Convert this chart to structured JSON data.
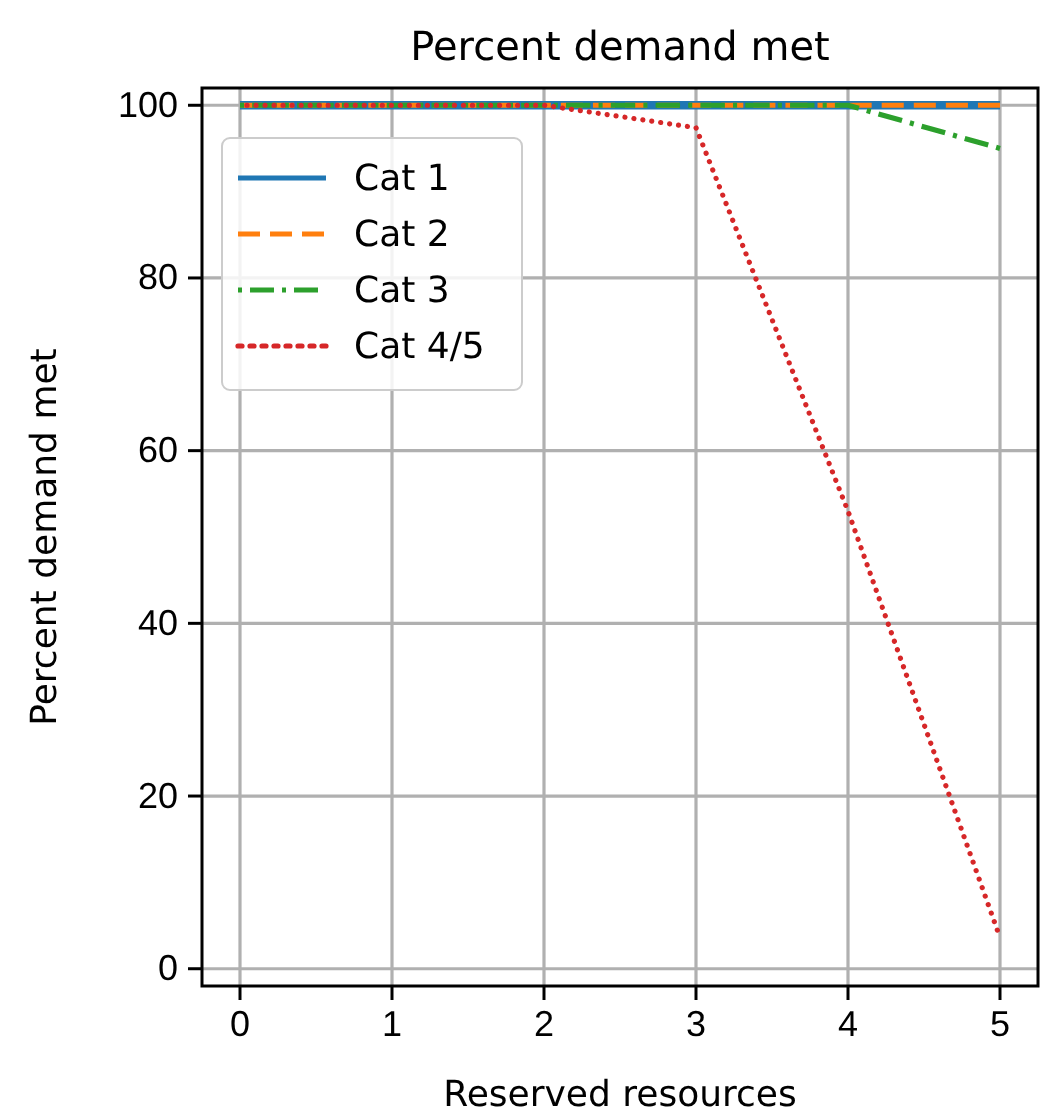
{
  "chart_data": {
    "type": "line",
    "title": "Percent demand met",
    "xlabel": "Reserved resources",
    "ylabel": "Percent demand met",
    "x": [
      0,
      1,
      2,
      3,
      4,
      5
    ],
    "series": [
      {
        "name": "Cat 1",
        "color": "#1f77b4",
        "line_style": "solid",
        "values": [
          100,
          100,
          100,
          100,
          100,
          100
        ]
      },
      {
        "name": "Cat 2",
        "color": "#ff7f0e",
        "line_style": "dashed",
        "values": [
          100,
          100,
          100,
          100,
          100,
          100
        ]
      },
      {
        "name": "Cat 3",
        "color": "#2ca02c",
        "line_style": "dashdot",
        "values": [
          100,
          100,
          100,
          100,
          100,
          95
        ]
      },
      {
        "name": "Cat 4/5",
        "color": "#d62728",
        "line_style": "dotted",
        "values": [
          100,
          100,
          100,
          97.4,
          53,
          3.6
        ]
      }
    ],
    "xlim": [
      -0.25,
      5.25
    ],
    "xticks": [
      0,
      1,
      2,
      3,
      4,
      5
    ],
    "ylim": [
      -2,
      102
    ],
    "yticks": [
      0,
      20,
      40,
      60,
      80,
      100
    ],
    "grid": true,
    "legend": "top left",
    "marker": "none"
  }
}
